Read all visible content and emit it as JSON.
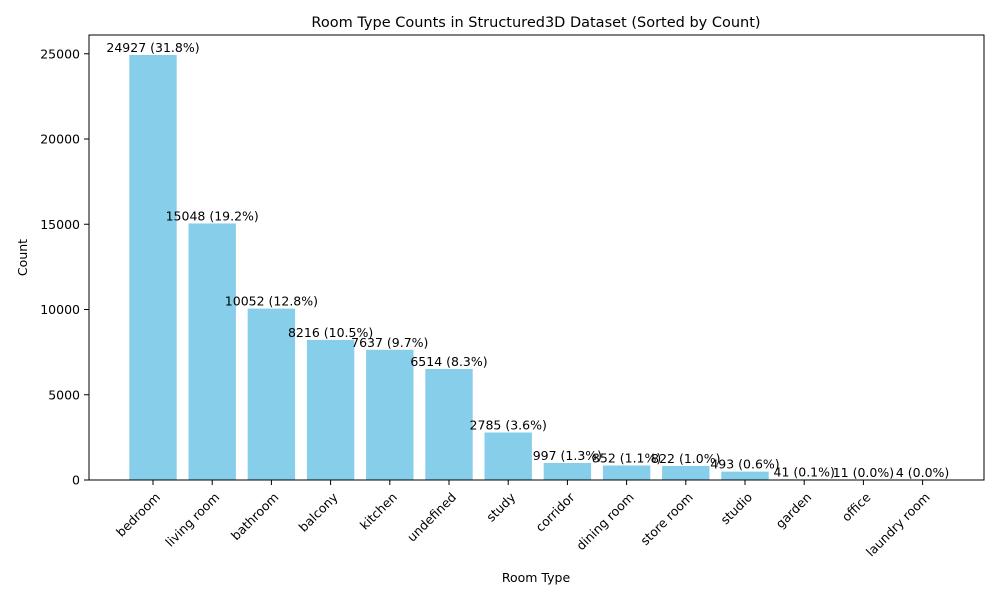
{
  "chart_data": {
    "type": "bar",
    "title": "Room Type Counts in Structured3D Dataset (Sorted by Count)",
    "xlabel": "Room Type",
    "ylabel": "Count",
    "ylim": [
      0,
      26100
    ],
    "yticks": [
      0,
      5000,
      10000,
      15000,
      20000,
      25000
    ],
    "categories": [
      "bedroom",
      "living room",
      "bathroom",
      "balcony",
      "kitchen",
      "undefined",
      "study",
      "corridor",
      "dining room",
      "store room",
      "studio",
      "garden",
      "office",
      "laundry room"
    ],
    "values": [
      24927,
      15048,
      10052,
      8216,
      7637,
      6514,
      2785,
      997,
      852,
      822,
      493,
      41,
      11,
      4
    ],
    "data_labels": [
      "24927 (31.8%)",
      "15048 (19.2%)",
      "10052 (12.8%)",
      "8216 (10.5%)",
      "7637 (9.7%)",
      "6514 (8.3%)",
      "2785 (3.6%)",
      "997 (1.3%)",
      "852 (1.1%)",
      "822 (1.0%)",
      "493 (0.6%)",
      "41 (0.1%)",
      "11 (0.0%)",
      "4 (0.0%)"
    ],
    "bar_color": "#87ceeb",
    "grid": false,
    "legend": "none"
  }
}
